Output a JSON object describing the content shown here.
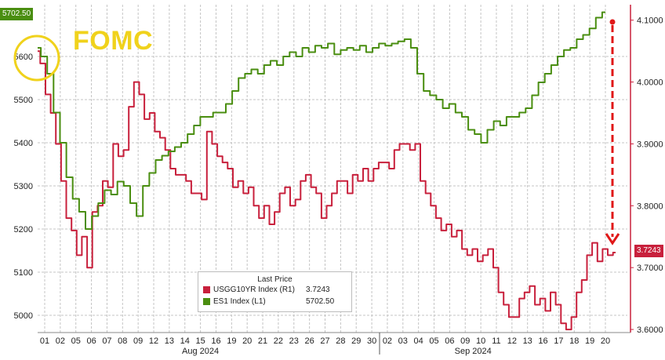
{
  "annotation": {
    "text": "FOMC"
  },
  "legend": {
    "title": "Last Price",
    "items": [
      {
        "name": "USGG10YR Index  (R1)",
        "value": "3.7243",
        "color": "#c8203c"
      },
      {
        "name": "ES1 Index  (L1)",
        "value": "5702.50",
        "color": "#4a8e10"
      }
    ]
  },
  "last_labels": {
    "left": "5702.50",
    "right": "3.7243"
  },
  "chart_data": {
    "type": "line",
    "x_tick_labels": [
      "01",
      "02",
      "05",
      "06",
      "07",
      "08",
      "09",
      "12",
      "13",
      "14",
      "15",
      "16",
      "19",
      "20",
      "21",
      "22",
      "23",
      "26",
      "27",
      "28",
      "29",
      "30",
      "02",
      "03",
      "04",
      "05",
      "06",
      "09",
      "10",
      "11",
      "12",
      "13",
      "16",
      "17",
      "18",
      "19",
      "20"
    ],
    "month_labels": [
      "Aug 2024",
      "Sep 2024"
    ],
    "left_axis": {
      "ticks": [
        "5000",
        "5100",
        "5200",
        "5300",
        "5400",
        "5500",
        "5600"
      ],
      "ylim": [
        4960,
        5720
      ]
    },
    "right_axis": {
      "ticks": [
        "3.6000",
        "3.7000",
        "3.8000",
        "3.9000",
        "4.0000",
        "4.1000"
      ],
      "ylim": [
        3.595,
        4.125
      ]
    },
    "grid": true,
    "legend_position": "bottom-center",
    "series": [
      {
        "name": "USGG10YR Index  (R1)",
        "axis": "right",
        "color": "#c8203c",
        "values": [
          4.05,
          4.03,
          3.98,
          3.95,
          3.9,
          3.84,
          3.78,
          3.76,
          3.72,
          3.75,
          3.7,
          3.79,
          3.8,
          3.84,
          3.83,
          3.9,
          3.88,
          3.89,
          3.96,
          4.0,
          3.98,
          3.94,
          3.95,
          3.92,
          3.91,
          3.89,
          3.86,
          3.85,
          3.85,
          3.84,
          3.82,
          3.82,
          3.81,
          3.92,
          3.9,
          3.88,
          3.87,
          3.86,
          3.83,
          3.84,
          3.82,
          3.83,
          3.8,
          3.78,
          3.8,
          3.77,
          3.79,
          3.82,
          3.83,
          3.8,
          3.81,
          3.84,
          3.85,
          3.83,
          3.82,
          3.78,
          3.8,
          3.82,
          3.84,
          3.84,
          3.82,
          3.85,
          3.84,
          3.86,
          3.84,
          3.86,
          3.87,
          3.87,
          3.86,
          3.89,
          3.9,
          3.9,
          3.89,
          3.9,
          3.84,
          3.82,
          3.8,
          3.78,
          3.76,
          3.77,
          3.75,
          3.76,
          3.73,
          3.72,
          3.73,
          3.71,
          3.72,
          3.73,
          3.7,
          3.66,
          3.64,
          3.62,
          3.62,
          3.65,
          3.66,
          3.67,
          3.64,
          3.65,
          3.63,
          3.66,
          3.64,
          3.61,
          3.6,
          3.62,
          3.66,
          3.68,
          3.72,
          3.74,
          3.71,
          3.73,
          3.72,
          3.7243
        ]
      },
      {
        "name": "ES1 Index  (L1)",
        "axis": "left",
        "color": "#4a8e10",
        "values": [
          5620,
          5600,
          5560,
          5470,
          5400,
          5320,
          5270,
          5240,
          5200,
          5230,
          5260,
          5290,
          5280,
          5310,
          5300,
          5260,
          5230,
          5300,
          5330,
          5360,
          5370,
          5380,
          5390,
          5400,
          5420,
          5440,
          5460,
          5460,
          5470,
          5470,
          5490,
          5520,
          5550,
          5560,
          5570,
          5560,
          5580,
          5590,
          5580,
          5600,
          5610,
          5600,
          5620,
          5610,
          5625,
          5620,
          5630,
          5605,
          5615,
          5620,
          5615,
          5625,
          5610,
          5620,
          5630,
          5625,
          5630,
          5635,
          5640,
          5620,
          5560,
          5520,
          5510,
          5500,
          5480,
          5490,
          5470,
          5460,
          5430,
          5420,
          5400,
          5430,
          5450,
          5440,
          5460,
          5460,
          5470,
          5480,
          5510,
          5540,
          5560,
          5580,
          5600,
          5615,
          5620,
          5640,
          5650,
          5665,
          5690,
          5702.5
        ]
      }
    ]
  }
}
